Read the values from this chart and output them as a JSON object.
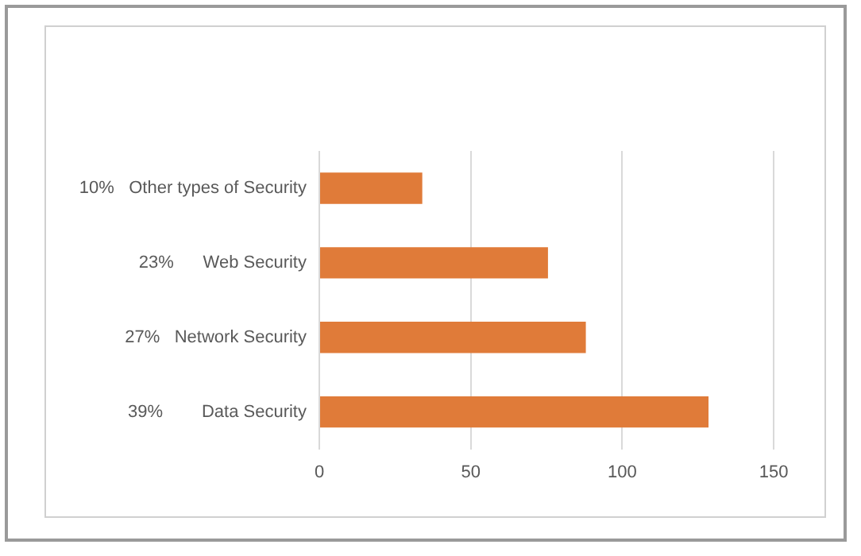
{
  "chart_data": {
    "type": "bar",
    "orientation": "horizontal",
    "categories": [
      "10%   Other types of Security",
      "23%      Web Security",
      "27%   Network Security",
      "39%        Data Security"
    ],
    "values": [
      34,
      75.5,
      88,
      128.5
    ],
    "color": "#e07b39",
    "xlim": [
      0,
      150
    ],
    "xticks": [
      0,
      50,
      100,
      150
    ],
    "grid": "x",
    "legend": false
  }
}
